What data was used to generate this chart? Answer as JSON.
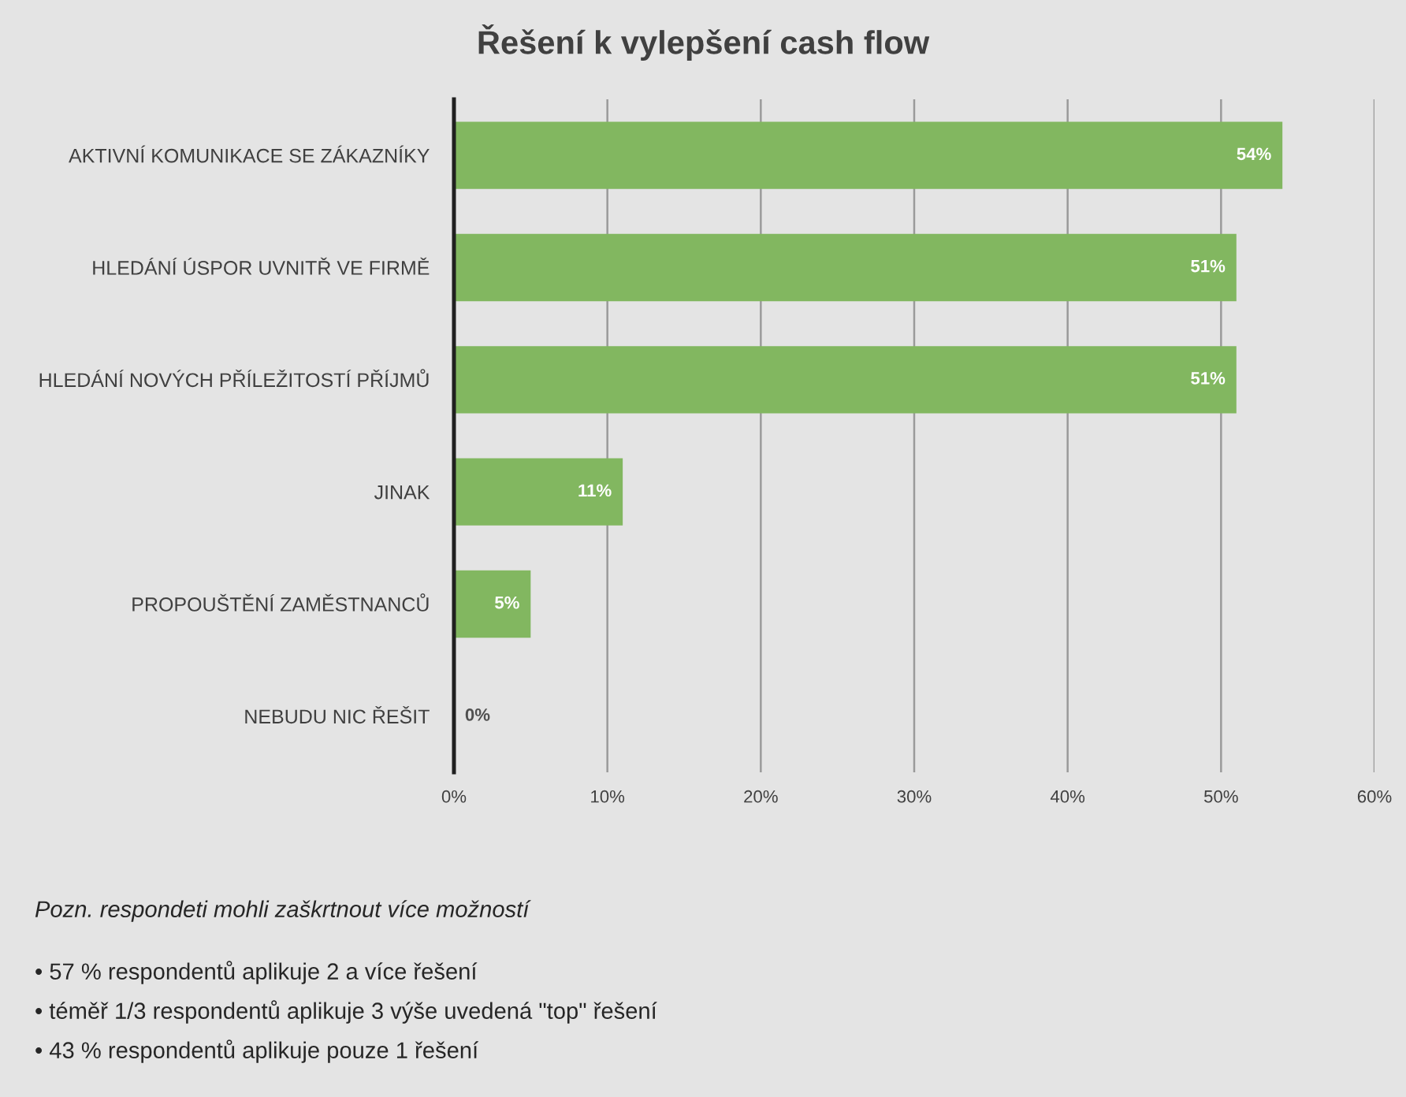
{
  "chart_data": {
    "type": "bar",
    "orientation": "horizontal",
    "title": "Řešení k vylepšení cash flow",
    "categories": [
      "AKTIVNÍ KOMUNIKACE SE ZÁKAZNÍKY",
      "HLEDÁNÍ ÚSPOR UVNITŘ VE FIRMĚ",
      "HLEDÁNÍ NOVÝCH PŘÍLEŽITOSTÍ PŘÍJMŮ",
      "JINAK",
      "PROPOUŠTĚNÍ ZAMĚSTNANCŮ",
      "NEBUDU NIC ŘEŠIT"
    ],
    "values": [
      54,
      51,
      51,
      11,
      5,
      0
    ],
    "color": "#82b760",
    "value_labels": [
      "54%",
      "51%",
      "51%",
      "11%",
      "5%",
      "0%"
    ],
    "xlim": [
      0,
      60
    ],
    "xticks": [
      {
        "value": 0,
        "label": "0%"
      },
      {
        "value": 10,
        "label": "10%"
      },
      {
        "value": 20,
        "label": "20%"
      },
      {
        "value": 30,
        "label": "30%"
      },
      {
        "value": 40,
        "label": "40%"
      },
      {
        "value": 50,
        "label": "50%"
      },
      {
        "value": 60,
        "label": "60%"
      }
    ],
    "grid": "x",
    "annotations": [
      "Pozn. respondeti mohli zaškrtnout více možností",
      "• 57 % respondentů aplikuje 2 a více řešení",
      "• téměř 1/3 respondentů aplikuje 3 výše uvedená \"top\" řešení",
      "• 43 % respondentů aplikuje pouze 1 řešení"
    ]
  }
}
